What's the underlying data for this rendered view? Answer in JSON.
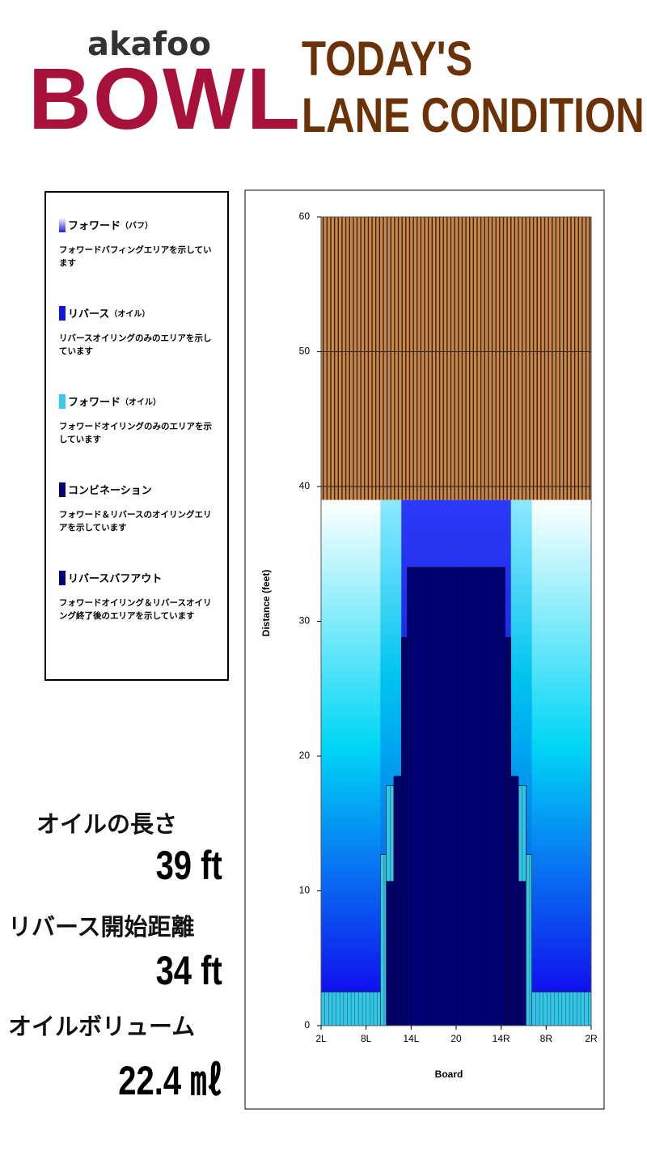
{
  "header": {
    "brand_small": "akafoo",
    "brand_large": "BOWL",
    "title_lines": [
      "TODAY'S",
      "LANE CONDITION"
    ]
  },
  "legend": [
    {
      "name": "フォワード",
      "sub": "（バフ）",
      "description": "フォワードバフィングエリアを示しています",
      "color": [
        "#ffffff",
        "#2020e0"
      ]
    },
    {
      "name": "リバース",
      "sub": "（オイル）",
      "description": "リバースオイリングのみのエリアを示しています",
      "color": "#1414e6"
    },
    {
      "name": "フォワード",
      "sub": "（オイル）",
      "description": "フォワードオイリングのみのエリアを示しています",
      "color": "#38c8ec"
    },
    {
      "name": "コンビネーション",
      "description": "フォワード＆リバースのオイリングエリアを示しています",
      "color": "#000070"
    },
    {
      "name": "リバースバフアウト",
      "description": "フォワードオイリング＆リバースオイリング終了後のエリアを示しています",
      "color": "#000080"
    }
  ],
  "stats": [
    {
      "label": "オイルの長さ",
      "value": "39 ft"
    },
    {
      "label": "リバース開始距離",
      "value": "34 ft"
    },
    {
      "label": "オイルボリューム",
      "value": "22.4 ㎖"
    }
  ],
  "chart_data": {
    "type": "lane",
    "x_label": "Board",
    "y_label": "Distance (feet)",
    "xlim": [
      2,
      38
    ],
    "xticks": [
      {
        "value": 2,
        "label": "2L"
      },
      {
        "value": 8,
        "label": "8L"
      },
      {
        "value": 14,
        "label": "14L"
      },
      20,
      {
        "value": 26,
        "label": "14R"
      },
      {
        "value": 32,
        "label": "8R"
      },
      {
        "value": 38,
        "label": "2R"
      }
    ],
    "ylim": [
      0,
      60
    ],
    "yticks": [
      0,
      10,
      20,
      30,
      40,
      50,
      60
    ],
    "grid": true,
    "regions": [
      {
        "x": [
          2,
          38
        ],
        "y": [
          2.5,
          39
        ],
        "color": [
          "#ffffff",
          "#00d6f6",
          "#1010ee"
        ]
      },
      {
        "x": [
          2,
          9.9
        ],
        "y": [
          0,
          2.5
        ],
        "color": "#34c6e6"
      },
      {
        "x": [
          30.1,
          38
        ],
        "y": [
          0,
          2.5
        ],
        "color": "#34c6e6"
      },
      {
        "x": [
          9.9,
          30.1
        ],
        "y": [
          12.7,
          39
        ],
        "color": [
          "#8ee8ff",
          "#00c4f0",
          "#0078ee"
        ]
      },
      {
        "x": [
          12.7,
          27.3
        ],
        "y": [
          18.5,
          39
        ],
        "color": [
          "#2a3af6",
          "#1a1ad8"
        ]
      },
      {
        "x": [
          9.9,
          10.7
        ],
        "y": [
          0,
          12.7
        ],
        "color": "#34c6e6"
      },
      {
        "x": [
          29.3,
          30.1
        ],
        "y": [
          0,
          12.7
        ],
        "color": "#34c6e6"
      },
      {
        "x": [
          10.7,
          11.7
        ],
        "y": [
          10.7,
          17.8
        ],
        "color": "#34c6e6"
      },
      {
        "x": [
          28.3,
          29.3
        ],
        "y": [
          10.7,
          17.8
        ],
        "color": "#34c6e6"
      },
      {
        "x": [
          10.7,
          29.3
        ],
        "y": [
          0,
          10.7
        ],
        "color": "#000070"
      },
      {
        "x": [
          11.7,
          28.3
        ],
        "y": [
          0,
          18.5
        ],
        "color": "#000070"
      },
      {
        "x": [
          12.7,
          27.3
        ],
        "y": [
          0,
          28.8
        ],
        "color": "#000070"
      },
      {
        "x": [
          13.5,
          26.5
        ],
        "y": [
          0,
          34
        ],
        "color": "#000078"
      }
    ]
  }
}
